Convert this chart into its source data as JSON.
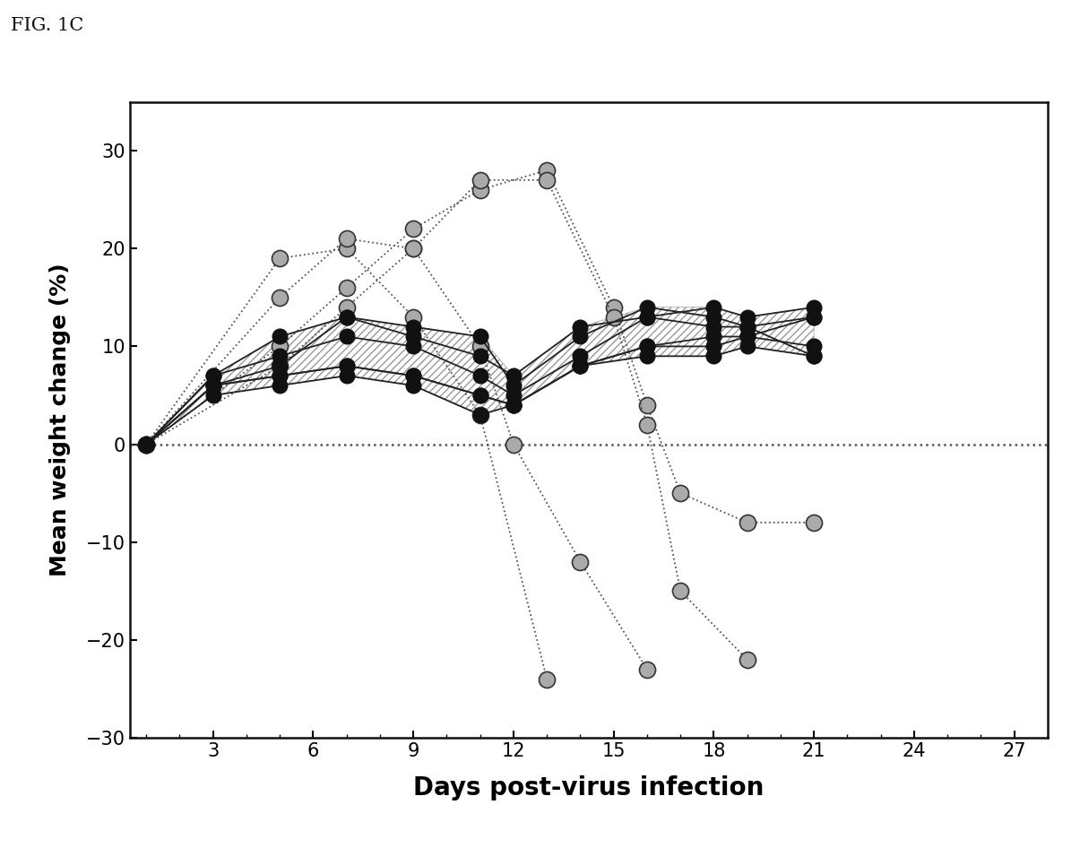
{
  "title": "FIG. 1C",
  "xlabel": "Days post-virus infection",
  "ylabel": "Mean weight change (%)",
  "xlim": [
    0.5,
    28
  ],
  "ylim": [
    -30,
    35
  ],
  "xticks": [
    3,
    6,
    9,
    12,
    15,
    18,
    21,
    24,
    27
  ],
  "yticks": [
    -30,
    -20,
    -10,
    0,
    10,
    20,
    30
  ],
  "solid_series": [
    {
      "x": [
        1,
        3,
        5,
        7,
        9,
        11,
        12,
        14,
        16,
        18,
        19,
        21
      ],
      "y": [
        0,
        6,
        7,
        8,
        7,
        5,
        4,
        8,
        10,
        11,
        11,
        13
      ]
    },
    {
      "x": [
        1,
        3,
        5,
        7,
        9,
        11,
        12,
        14,
        16,
        18,
        19,
        21
      ],
      "y": [
        0,
        7,
        9,
        11,
        10,
        7,
        5,
        9,
        13,
        14,
        13,
        14
      ]
    },
    {
      "x": [
        1,
        3,
        5,
        7,
        9,
        11,
        12,
        14,
        16,
        18,
        19,
        21
      ],
      "y": [
        0,
        6,
        8,
        13,
        12,
        11,
        6,
        11,
        14,
        13,
        12,
        13
      ]
    },
    {
      "x": [
        1,
        3,
        5,
        7,
        9,
        11,
        12,
        14,
        16,
        18,
        19,
        21
      ],
      "y": [
        0,
        7,
        11,
        13,
        11,
        9,
        7,
        12,
        13,
        12,
        12,
        9
      ]
    },
    {
      "x": [
        1,
        3,
        5,
        7,
        9,
        11,
        12,
        14,
        16,
        18,
        19,
        21
      ],
      "y": [
        0,
        5,
        6,
        7,
        6,
        3,
        4,
        8,
        9,
        9,
        10,
        9
      ]
    },
    {
      "x": [
        1,
        3,
        5,
        7,
        9,
        11,
        12,
        14,
        16,
        18,
        19,
        21
      ],
      "y": [
        0,
        6,
        7,
        8,
        7,
        5,
        4,
        8,
        10,
        10,
        11,
        10
      ]
    }
  ],
  "dashed_series": [
    {
      "x": [
        1,
        5,
        7,
        9,
        11,
        13
      ],
      "y": [
        0,
        19,
        20,
        13,
        3,
        -24
      ]
    },
    {
      "x": [
        1,
        5,
        7,
        9,
        11,
        12,
        14,
        16
      ],
      "y": [
        0,
        15,
        21,
        20,
        10,
        0,
        -12,
        -23
      ]
    },
    {
      "x": [
        1,
        5,
        7,
        9,
        11,
        13,
        15,
        16,
        17,
        19,
        21
      ],
      "y": [
        0,
        10,
        16,
        22,
        26,
        28,
        14,
        4,
        -5,
        -8,
        -8
      ]
    },
    {
      "x": [
        1,
        5,
        7,
        9,
        11,
        13,
        15,
        16,
        17,
        19,
        21
      ],
      "y": [
        0,
        8,
        14,
        20,
        27,
        27,
        13,
        2,
        -15,
        -22,
        null
      ]
    }
  ],
  "line_color_solid": "#111111",
  "line_color_dashed": "#555555",
  "bg_color": "#ffffff"
}
